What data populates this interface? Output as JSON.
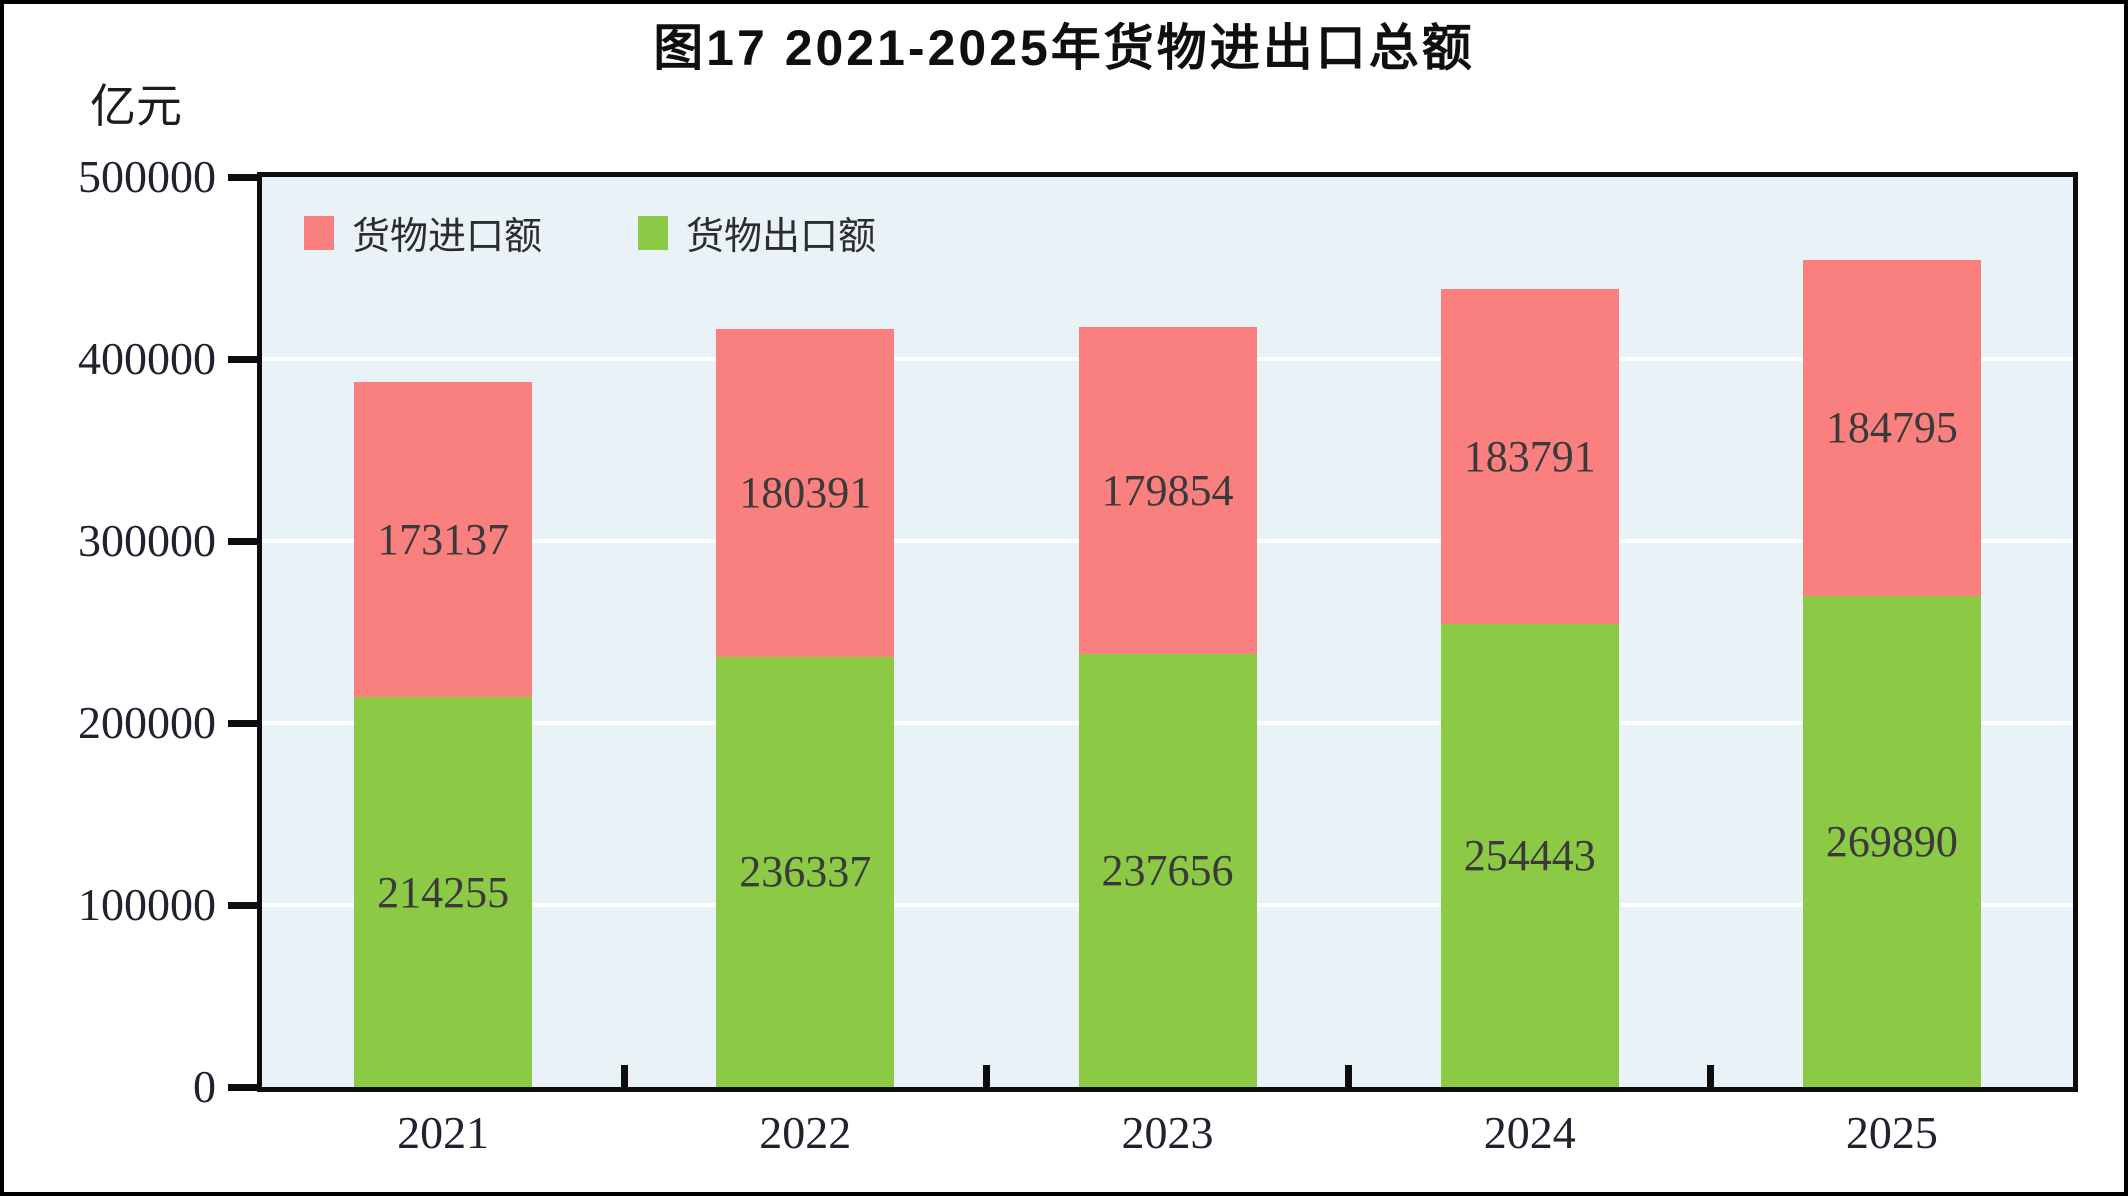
{
  "chart": {
    "title": "图17  2021-2025年货物进出口总额",
    "unit": "亿元"
  },
  "chart_data": {
    "type": "bar",
    "stacked": true,
    "title": "图17  2021-2025年货物进出口总额",
    "ylabel": "亿元",
    "categories": [
      "2021",
      "2022",
      "2023",
      "2024",
      "2025"
    ],
    "series": [
      {
        "key": "import",
        "name": "货物进口额",
        "color": "#F9807E",
        "values": [
          173137,
          180391,
          179854,
          183791,
          184795
        ]
      },
      {
        "key": "export",
        "name": "货物出口额",
        "color": "#8CC944",
        "values": [
          214255,
          236337,
          237656,
          254443,
          269890
        ]
      }
    ],
    "stack_order_bottom_to_top": [
      "export",
      "import"
    ],
    "ylim": [
      0,
      500000
    ],
    "yticks": [
      0,
      100000,
      200000,
      300000,
      400000,
      500000
    ],
    "grid": true,
    "legend_position": "top-left-inside",
    "plot_background": "#E9F2F6"
  }
}
